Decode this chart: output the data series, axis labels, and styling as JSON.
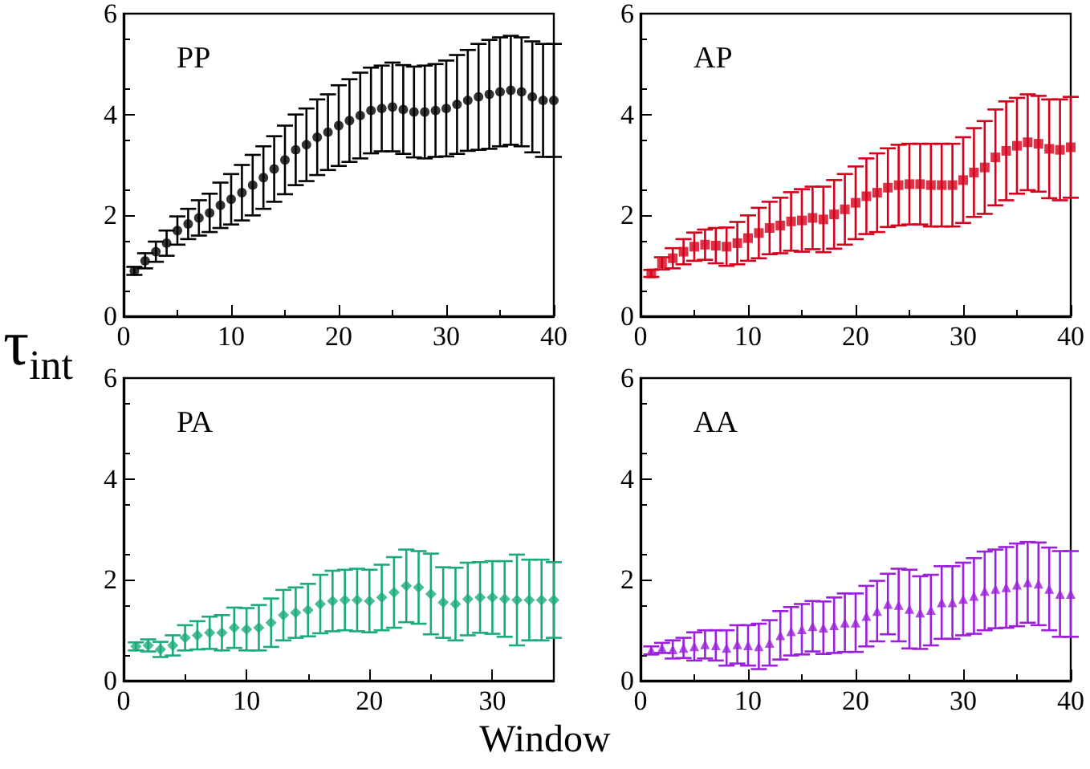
{
  "chart_data": [
    {
      "type": "scatter",
      "title": "PP",
      "ylabel": "τ$_{int}$",
      "marker": "circle",
      "xlim": [
        0,
        40
      ],
      "xticks": [
        0,
        10,
        20,
        30,
        40
      ],
      "ylim": [
        0,
        6
      ],
      "yticks": [
        0,
        2,
        4,
        6
      ],
      "x": [
        1,
        2,
        3,
        4,
        5,
        6,
        7,
        8,
        9,
        10,
        11,
        12,
        13,
        14,
        15,
        16,
        17,
        18,
        19,
        20,
        21,
        22,
        23,
        24,
        25,
        26,
        27,
        28,
        29,
        30,
        31,
        32,
        33,
        34,
        35,
        36,
        37,
        38,
        39,
        40
      ],
      "series": [
        {
          "color": "#000000",
          "values": [
            0.9,
            1.1,
            1.28,
            1.45,
            1.7,
            1.83,
            1.95,
            2.05,
            2.2,
            2.32,
            2.45,
            2.6,
            2.75,
            2.92,
            3.1,
            3.3,
            3.4,
            3.55,
            3.65,
            3.78,
            3.88,
            3.98,
            4.08,
            4.12,
            4.15,
            4.1,
            4.05,
            4.05,
            4.08,
            4.12,
            4.2,
            4.28,
            4.35,
            4.4,
            4.45,
            4.48,
            4.45,
            4.35,
            4.28,
            4.28
          ],
          "errors": [
            0.08,
            0.15,
            0.2,
            0.25,
            0.28,
            0.3,
            0.35,
            0.38,
            0.45,
            0.5,
            0.55,
            0.6,
            0.62,
            0.65,
            0.68,
            0.7,
            0.72,
            0.75,
            0.75,
            0.8,
            0.82,
            0.85,
            0.85,
            0.85,
            0.88,
            0.88,
            0.9,
            0.92,
            0.92,
            0.95,
            0.98,
            1.0,
            1.05,
            1.08,
            1.08,
            1.08,
            1.08,
            1.1,
            1.12,
            1.12
          ]
        }
      ]
    },
    {
      "type": "scatter",
      "title": "AP",
      "marker": "square",
      "xlim": [
        0,
        40
      ],
      "xticks": [
        0,
        10,
        20,
        30,
        40
      ],
      "ylim": [
        0,
        6
      ],
      "yticks": [
        0,
        2,
        4,
        6
      ],
      "x": [
        1,
        2,
        3,
        4,
        5,
        6,
        7,
        8,
        9,
        10,
        11,
        12,
        13,
        14,
        15,
        16,
        17,
        18,
        19,
        20,
        21,
        22,
        23,
        24,
        25,
        26,
        27,
        28,
        29,
        30,
        31,
        32,
        33,
        34,
        35,
        36,
        37,
        38,
        39,
        40
      ],
      "series": [
        {
          "color": "#d4001c",
          "values": [
            0.85,
            1.05,
            1.15,
            1.28,
            1.38,
            1.42,
            1.4,
            1.38,
            1.45,
            1.55,
            1.65,
            1.75,
            1.8,
            1.88,
            1.9,
            1.95,
            1.92,
            2.02,
            2.12,
            2.25,
            2.38,
            2.45,
            2.55,
            2.6,
            2.62,
            2.62,
            2.6,
            2.6,
            2.6,
            2.7,
            2.85,
            2.95,
            3.15,
            3.28,
            3.38,
            3.45,
            3.42,
            3.32,
            3.3,
            3.35
          ],
          "errors": [
            0.07,
            0.12,
            0.2,
            0.25,
            0.28,
            0.3,
            0.35,
            0.38,
            0.42,
            0.45,
            0.5,
            0.52,
            0.55,
            0.58,
            0.62,
            0.62,
            0.65,
            0.68,
            0.7,
            0.72,
            0.75,
            0.78,
            0.78,
            0.8,
            0.8,
            0.8,
            0.82,
            0.82,
            0.82,
            0.85,
            0.88,
            0.92,
            0.95,
            0.98,
            0.95,
            0.95,
            0.95,
            0.98,
            1.0,
            1.0
          ]
        }
      ]
    },
    {
      "type": "scatter",
      "title": "PA",
      "xlabel": "Window",
      "marker": "diamond",
      "xlim": [
        0,
        35
      ],
      "xticks": [
        0,
        10,
        20,
        30
      ],
      "ylim": [
        0,
        6
      ],
      "yticks": [
        0,
        2,
        4,
        6
      ],
      "x": [
        1,
        2,
        3,
        4,
        5,
        6,
        7,
        8,
        9,
        10,
        11,
        12,
        13,
        14,
        15,
        16,
        17,
        18,
        19,
        20,
        21,
        22,
        23,
        24,
        25,
        26,
        27,
        28,
        29,
        30,
        31,
        32,
        33,
        34,
        35
      ],
      "series": [
        {
          "color": "#1aab79",
          "values": [
            0.68,
            0.7,
            0.62,
            0.7,
            0.85,
            0.9,
            0.95,
            0.95,
            1.05,
            1.02,
            1.05,
            1.15,
            1.3,
            1.35,
            1.4,
            1.52,
            1.58,
            1.6,
            1.6,
            1.58,
            1.65,
            1.75,
            1.88,
            1.85,
            1.72,
            1.55,
            1.52,
            1.62,
            1.65,
            1.65,
            1.62,
            1.6,
            1.6,
            1.6,
            1.6
          ],
          "errors": [
            0.08,
            0.12,
            0.15,
            0.2,
            0.25,
            0.28,
            0.32,
            0.35,
            0.4,
            0.42,
            0.45,
            0.48,
            0.5,
            0.5,
            0.52,
            0.58,
            0.6,
            0.6,
            0.62,
            0.62,
            0.65,
            0.7,
            0.72,
            0.72,
            0.8,
            0.7,
            0.72,
            0.72,
            0.7,
            0.72,
            0.75,
            0.9,
            0.8,
            0.8,
            0.75
          ]
        }
      ]
    },
    {
      "type": "scatter",
      "title": "AA",
      "marker": "triangle",
      "xlim": [
        0,
        40
      ],
      "xticks": [
        0,
        10,
        20,
        30,
        40
      ],
      "ylim": [
        0,
        6
      ],
      "yticks": [
        0,
        2,
        4,
        6
      ],
      "x": [
        1,
        2,
        3,
        4,
        5,
        6,
        7,
        8,
        9,
        10,
        11,
        12,
        13,
        14,
        15,
        16,
        17,
        18,
        19,
        20,
        21,
        22,
        23,
        24,
        25,
        26,
        27,
        28,
        29,
        30,
        31,
        32,
        33,
        34,
        35,
        36,
        37,
        38,
        39,
        40
      ],
      "series": [
        {
          "color": "#9b1fdb",
          "values": [
            0.6,
            0.65,
            0.62,
            0.65,
            0.68,
            0.72,
            0.7,
            0.65,
            0.72,
            0.7,
            0.68,
            0.75,
            0.9,
            0.98,
            1.02,
            1.08,
            1.05,
            1.1,
            1.15,
            1.15,
            1.28,
            1.38,
            1.52,
            1.5,
            1.42,
            1.35,
            1.4,
            1.55,
            1.55,
            1.62,
            1.68,
            1.78,
            1.82,
            1.85,
            1.9,
            1.95,
            1.92,
            1.82,
            1.72,
            1.72
          ],
          "errors": [
            0.08,
            0.1,
            0.18,
            0.2,
            0.28,
            0.28,
            0.3,
            0.35,
            0.38,
            0.4,
            0.45,
            0.45,
            0.48,
            0.48,
            0.5,
            0.5,
            0.52,
            0.55,
            0.58,
            0.58,
            0.6,
            0.6,
            0.6,
            0.72,
            0.78,
            0.72,
            0.7,
            0.72,
            0.72,
            0.72,
            0.75,
            0.78,
            0.78,
            0.8,
            0.82,
            0.8,
            0.82,
            0.82,
            0.85,
            0.85
          ]
        }
      ]
    }
  ]
}
